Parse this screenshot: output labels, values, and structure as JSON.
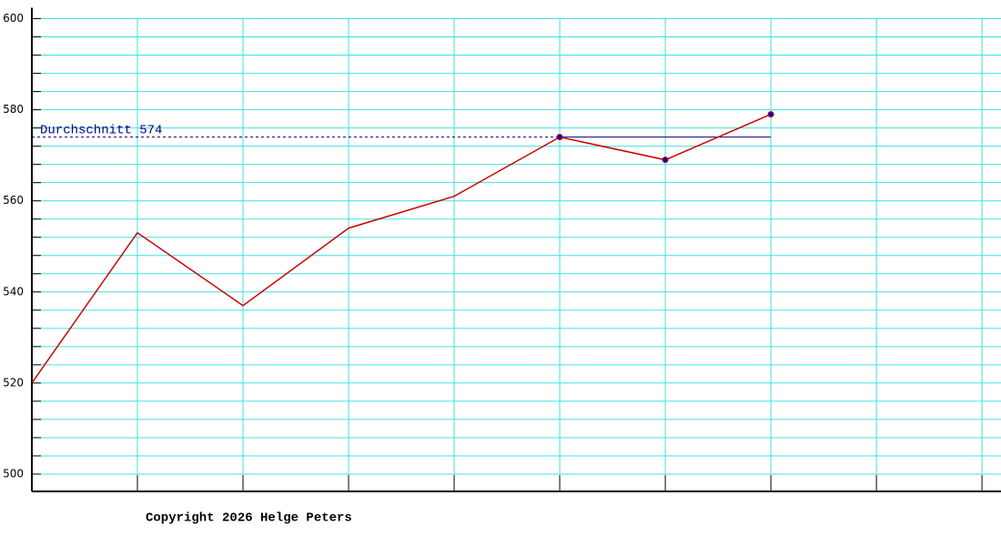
{
  "chart_data": {
    "type": "line",
    "x": [
      0,
      1,
      2,
      3,
      4,
      5,
      6,
      7
    ],
    "series": [
      {
        "color": "#cc0000",
        "values": [
          520,
          553,
          537,
          554,
          561,
          574,
          569,
          579
        ]
      }
    ],
    "marked_points": [
      5,
      6,
      7
    ],
    "marker_color": "#0000cc",
    "xlim": [
      0,
      9.18
    ],
    "xgrid": [
      1,
      2,
      3,
      4,
      5,
      6,
      7,
      8,
      9
    ],
    "ylim": [
      496.2,
      602.4
    ],
    "yticks": [
      500,
      520,
      540,
      560,
      580,
      600
    ],
    "yminor": [
      504,
      508,
      512,
      516,
      524,
      528,
      532,
      536,
      544,
      548,
      552,
      556,
      564,
      568,
      572,
      576,
      584,
      588,
      592,
      596
    ],
    "grid_color": "#40e0e0",
    "average": 574,
    "average_label": "Durchschnitt 574",
    "average_color": "#000080",
    "footer": "Copyright 2026 Helge Peters"
  }
}
